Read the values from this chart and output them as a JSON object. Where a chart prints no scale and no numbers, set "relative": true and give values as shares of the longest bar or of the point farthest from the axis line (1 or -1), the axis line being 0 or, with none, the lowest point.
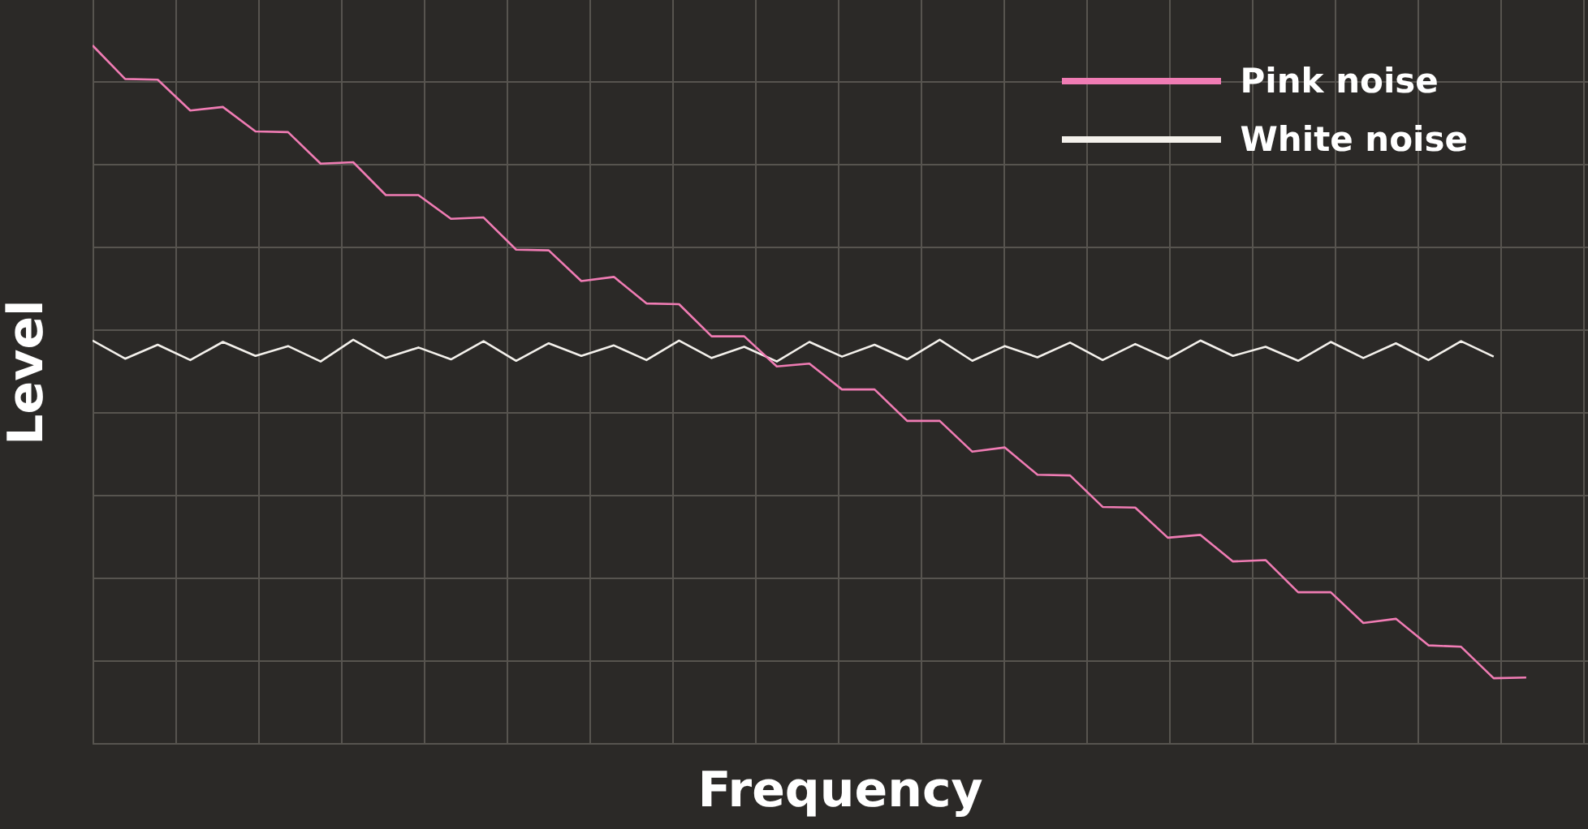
{
  "chart_data": {
    "type": "line",
    "relative": true,
    "xlabel": "Frequency",
    "ylabel": "Level",
    "grid": true,
    "legend": "top right",
    "marker": "none",
    "line_style": "solid",
    "categories": [
      null,
      null,
      null,
      null,
      null,
      null,
      null,
      null,
      null,
      null,
      null,
      null,
      null,
      null,
      null,
      null,
      null,
      null,
      null,
      null,
      null,
      null,
      null,
      null,
      null,
      null,
      null,
      null,
      null,
      null,
      null,
      null,
      null,
      null,
      null,
      null,
      null,
      null,
      null,
      null,
      null,
      null,
      null,
      null,
      null
    ],
    "series": [
      {
        "name": "Pink noise",
        "color": "#f07cb4",
        "values": [
          1.0,
          0.952,
          0.951,
          0.907,
          0.912,
          0.877,
          0.876,
          0.831,
          0.833,
          0.786,
          0.786,
          0.752,
          0.754,
          0.708,
          0.707,
          0.663,
          0.669,
          0.631,
          0.63,
          0.584,
          0.584,
          0.541,
          0.545,
          0.508,
          0.508,
          0.463,
          0.463,
          0.419,
          0.425,
          0.386,
          0.385,
          0.34,
          0.339,
          0.296,
          0.3,
          0.262,
          0.264,
          0.218,
          0.218,
          0.174,
          0.18,
          0.142,
          0.14,
          0.095,
          0.096
        ]
      },
      {
        "name": "White noise",
        "color": "#f4f1ec",
        "values": [
          0.578,
          0.552,
          0.572,
          0.55,
          0.576,
          0.556,
          0.57,
          0.548,
          0.579,
          0.553,
          0.568,
          0.551,
          0.577,
          0.549,
          0.574,
          0.556,
          0.571,
          0.55,
          0.578,
          0.553,
          0.569,
          0.548,
          0.576,
          0.555,
          0.572,
          0.551,
          0.579,
          0.549,
          0.57,
          0.554,
          0.575,
          0.55,
          0.573,
          0.552,
          0.578,
          0.556,
          0.569,
          0.549,
          0.576,
          0.553,
          0.574,
          0.55,
          0.577,
          0.555,
          null
        ]
      }
    ]
  }
}
